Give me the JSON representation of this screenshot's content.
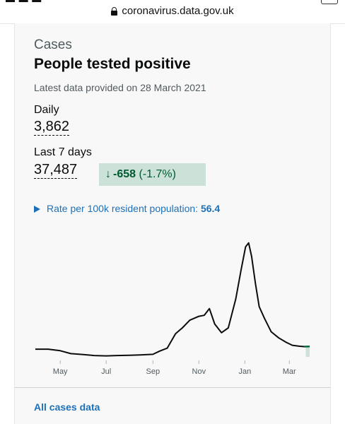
{
  "browser": {
    "url": "coronavirus.data.gov.uk"
  },
  "card": {
    "category": "Cases",
    "title": "People tested positive",
    "updated": "Latest data provided on 28 March 2021",
    "daily": {
      "label": "Daily",
      "value": "3,862"
    },
    "last7": {
      "label": "Last 7 days",
      "value": "37,487"
    },
    "change": {
      "arrow": "↓",
      "value": "-658",
      "percent": "(-1.7%)"
    },
    "rate": {
      "label": "Rate per 100k resident population:",
      "value": "56.4"
    },
    "link": "All cases data"
  },
  "chart_data": {
    "type": "area",
    "x_ticks": [
      "May",
      "Jul",
      "Sep",
      "Nov",
      "Jan",
      "Mar"
    ],
    "highlight_region": "last 7 days",
    "x": [
      "2020-03-29",
      "2020-04-15",
      "2020-05-01",
      "2020-05-15",
      "2020-06-01",
      "2020-06-15",
      "2020-07-01",
      "2020-07-15",
      "2020-08-01",
      "2020-08-15",
      "2020-09-01",
      "2020-09-10",
      "2020-09-20",
      "2020-10-01",
      "2020-10-10",
      "2020-10-20",
      "2020-11-01",
      "2020-11-08",
      "2020-11-15",
      "2020-11-22",
      "2020-12-01",
      "2020-12-10",
      "2020-12-20",
      "2020-12-27",
      "2021-01-02",
      "2021-01-06",
      "2021-01-10",
      "2021-01-15",
      "2021-01-20",
      "2021-01-27",
      "2021-02-05",
      "2021-02-15",
      "2021-02-25",
      "2021-03-05",
      "2021-03-15",
      "2021-03-21",
      "2021-03-28"
    ],
    "values": [
      4000,
      4000,
      3200,
      1700,
      1200,
      700,
      500,
      700,
      800,
      1000,
      1300,
      3000,
      4500,
      12000,
      15000,
      19000,
      21000,
      21500,
      25000,
      17000,
      12500,
      15000,
      30000,
      45000,
      57000,
      59000,
      52000,
      38000,
      26000,
      20000,
      13000,
      9800,
      7500,
      6000,
      5500,
      5300,
      5400
    ],
    "ylim": [
      0,
      60000
    ]
  },
  "colors": {
    "line": "#0b0c0c",
    "highlight": "#cce2d8",
    "highlight_line": "#00703c",
    "link": "#1d70b8",
    "change_bg": "#cce2d8",
    "change_text": "#005a30"
  }
}
